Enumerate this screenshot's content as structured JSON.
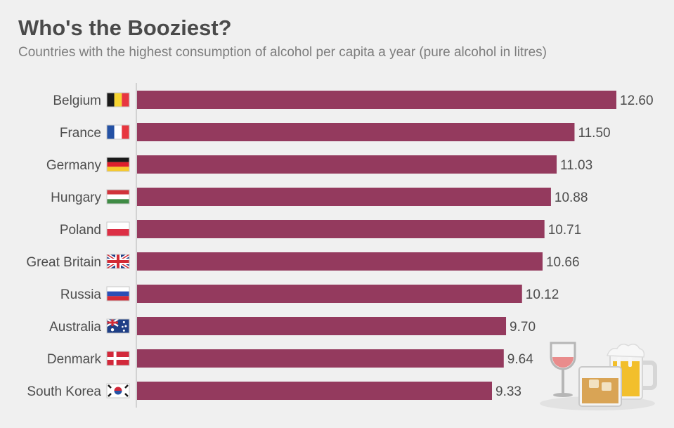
{
  "header": {
    "title": "Who's the Booziest?",
    "subtitle": "Countries with the highest consumption of alcohol per capita a year (pure alcohol in litres)"
  },
  "chart_data": {
    "type": "bar",
    "orientation": "horizontal",
    "title": "Who's the Booziest?",
    "subtitle": "Countries with the highest consumption of alcohol per capita a year (pure alcohol in litres)",
    "categories": [
      "Belgium",
      "France",
      "Germany",
      "Hungary",
      "Poland",
      "Great Britain",
      "Russia",
      "Australia",
      "Denmark",
      "South Korea"
    ],
    "values": [
      12.6,
      11.5,
      11.03,
      10.88,
      10.71,
      10.66,
      10.12,
      9.7,
      9.64,
      9.33
    ],
    "value_labels": [
      "12.60",
      "11.50",
      "11.03",
      "10.88",
      "10.71",
      "10.66",
      "10.12",
      "9.70",
      "9.64",
      "9.33"
    ],
    "xlabel": "",
    "ylabel": "",
    "xlim": [
      0,
      12.6
    ],
    "grid": false,
    "bar_color": "#943a5e",
    "flags": [
      "belgium-flag-icon",
      "france-flag-icon",
      "germany-flag-icon",
      "hungary-flag-icon",
      "poland-flag-icon",
      "great-britain-flag-icon",
      "russia-flag-icon",
      "australia-flag-icon",
      "denmark-flag-icon",
      "south-korea-flag-icon"
    ]
  },
  "illustration": {
    "icons": [
      "wine-glass-icon",
      "whiskey-glass-icon",
      "beer-mug-icon"
    ]
  }
}
